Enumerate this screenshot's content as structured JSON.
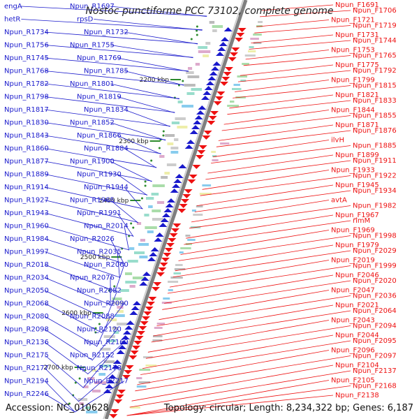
{
  "title": "Nostoc punctiforme PCC 73102, complete genome",
  "accession": "Accession: NC_010628",
  "topology": "Topology: circular; Length: 8,234,322 bp; Genes: 6,187",
  "colors": {
    "reverse": "#1a1acc",
    "forward": "#ee1111",
    "backbone": "#7f7f7f",
    "tick_dot": "#2e8b2e"
  },
  "scale_labels": [
    "2200 kbp",
    "2300 kbp",
    "2400 kbp",
    "2500 kbp",
    "2600 kbp",
    "2700 kbp"
  ],
  "left_genes": [
    "engA",
    "Npun_R1697",
    "hetR",
    "rpsD",
    "Npun_R1734",
    "Npun_R1732",
    "Npun_R1756",
    "Npun_R1755",
    "Npun_R1745",
    "Npun_R1769",
    "Npun_R1768",
    "Npun_R1785",
    "Npun_R1782",
    "Npun_R1801",
    "Npun_R1798",
    "Npun_R1819",
    "Npun_R1817",
    "Npun_R1834",
    "Npun_R1830",
    "Npun_R1852",
    "Npun_R1843",
    "Npun_R1866",
    "Npun_R1860",
    "Npun_R1884",
    "Npun_R1877",
    "Npun_R1900",
    "Npun_R1889",
    "Npun_R1930",
    "Npun_R1914",
    "Npun_R1944",
    "Npun_R1927",
    "Npun_R1965",
    "Npun_R1943",
    "Npun_R1991",
    "Npun_R1960",
    "Npun_R2014",
    "Npun_R1984",
    "Npun_R2026",
    "Npun_R1997",
    "Npun_R2035",
    "Npun_R2018",
    "Npun_R2060",
    "Npun_R2034",
    "Npun_R2076",
    "Npun_R2050",
    "Npun_R2082",
    "Npun_R2068",
    "Npun_R2090",
    "Npun_R2080",
    "Npun_R2088",
    "Npun_R2098",
    "Npun_R2120",
    "Npun_R2136",
    "Npun_R2169",
    "Npun_R2175",
    "Npun_R2152",
    "Npun_R2177",
    "Npun_R2178",
    "Npun_R2194",
    "Npun_R2217",
    "Npun_R2246"
  ],
  "right_genes": [
    "Npun_F1691",
    "Npun_F1706",
    "Npun_F1721",
    "Npun_F1719",
    "Npun_F1731",
    "Npun_F1744",
    "Npun_F1753",
    "Npun_F1765",
    "Npun_F1775",
    "Npun_F1792",
    "Npun_F1799",
    "Npun_F1815",
    "Npun_F1821",
    "Npun_F1833",
    "Npun_F1844",
    "Npun_F1855",
    "Npun_F1871",
    "Npun_F1876",
    "ilvH",
    "Npun_F1885",
    "Npun_F1899",
    "Npun_F1911",
    "Npun_F1933",
    "Npun_F1922",
    "Npun_F1945",
    "Npun_F1934",
    "avtA",
    "Npun_F1982",
    "Npun_F1967",
    "rimM",
    "Npun_F1969",
    "Npun_F1998",
    "Npun_F1979",
    "Npun_F2029",
    "Npun_F2019",
    "Npun_F1999",
    "Npun_F2046",
    "Npun_F2020",
    "Npun_F2047",
    "Npun_F2036",
    "Npun_F2021",
    "Npun_F2064",
    "Npun_F2043",
    "Npun_F2094",
    "Npun_F2044",
    "Npun_F2095",
    "Npun_F2096",
    "Npun_F2097",
    "Npun_F2104",
    "Npun_F2137",
    "Npun_F2105",
    "Npun_F2168",
    "Npun_F2138"
  ]
}
